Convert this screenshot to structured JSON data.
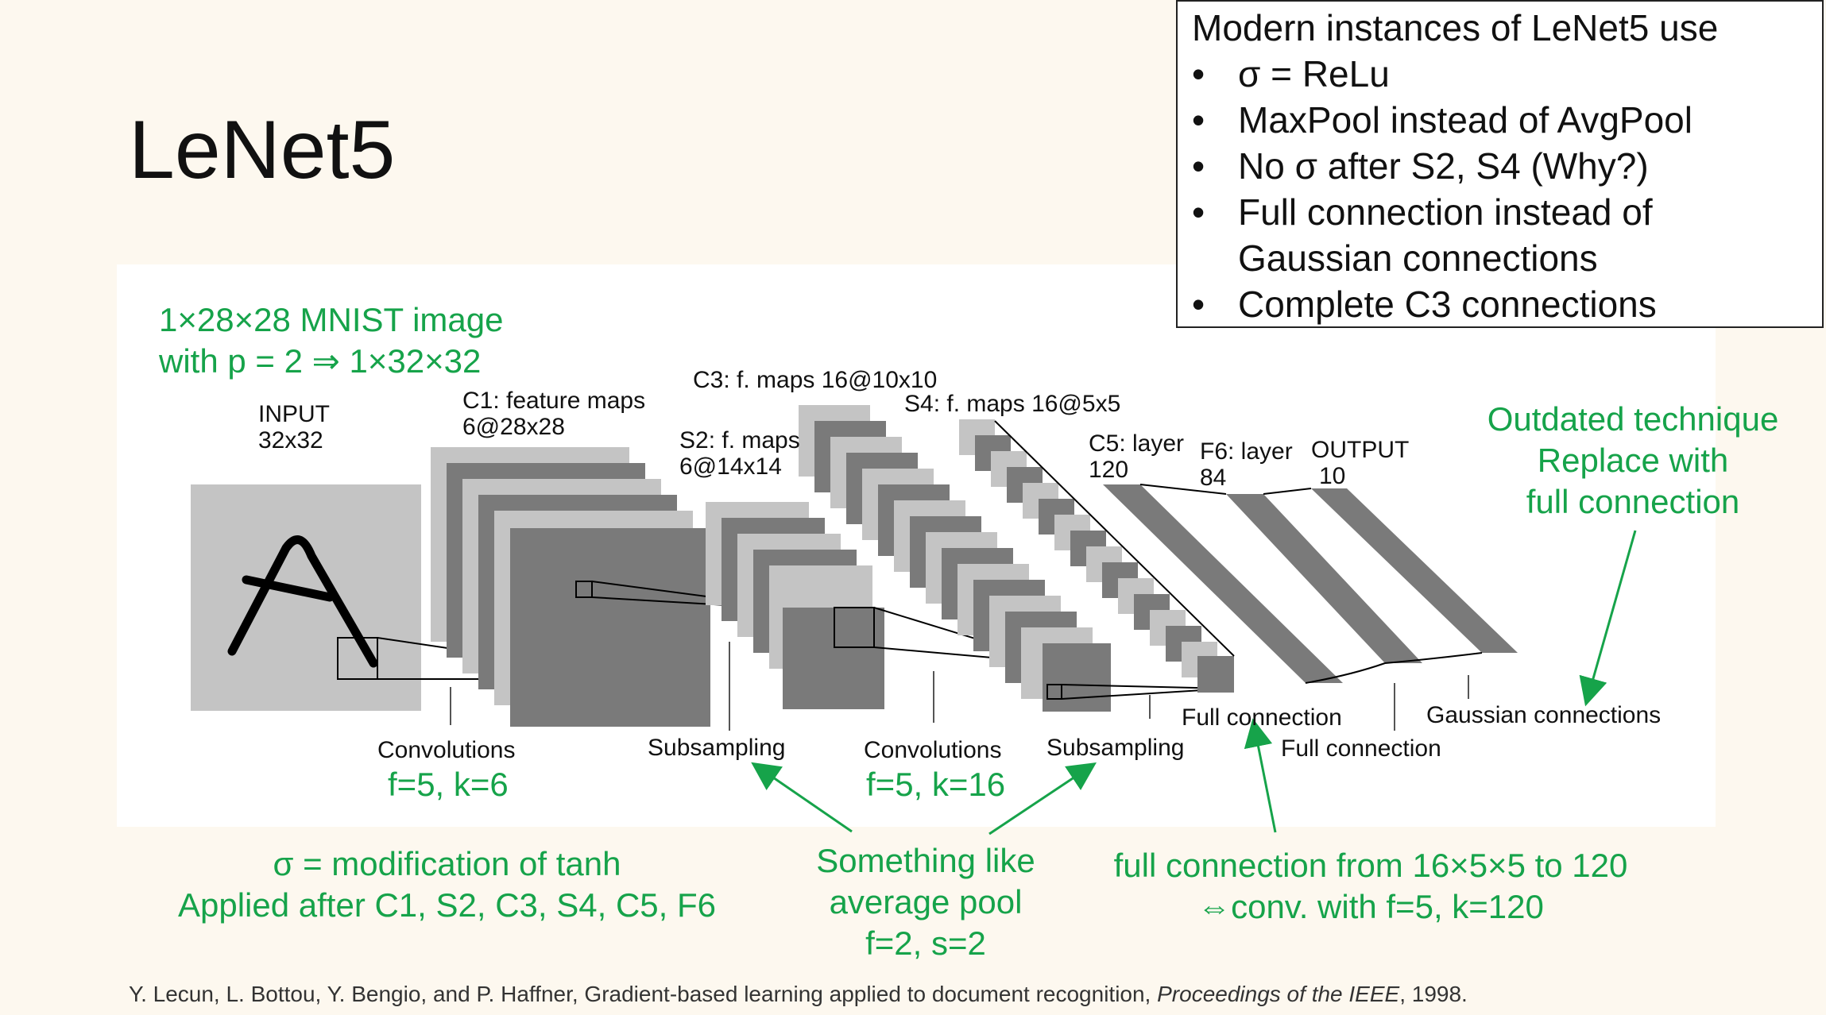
{
  "slide": {
    "title": "LeNet5",
    "citation_pre": "Y. Lecun, L. Bottou, Y. Bengio, and P. Haffner, Gradient-based learning applied to document recognition, ",
    "citation_venue": "Proceedings of the IEEE",
    "citation_post": ", 1998."
  },
  "notes_box": {
    "heading": "Modern instances of LeNet5 use",
    "bullets": [
      "σ = ReLu",
      "MaxPool instead of AvgPool",
      "No σ after S2, S4 (Why?)",
      "Full connection instead of",
      "Gaussian connections",
      "Complete C3 connections"
    ],
    "bullet_glyph": "•"
  },
  "diagram": {
    "input_label": [
      "INPUT",
      "32x32"
    ],
    "c1_label": [
      "C1: feature maps",
      "6@28x28"
    ],
    "s2_label": [
      "S2: f. maps",
      "6@14x14"
    ],
    "c3_label": "C3: f. maps 16@10x10",
    "s4_label": "S4: f. maps 16@5x5",
    "c5_label": [
      "C5: layer",
      "120"
    ],
    "f6_label": [
      "F6: layer",
      "84"
    ],
    "output_label": [
      "OUTPUT",
      "10"
    ],
    "op_labels": {
      "conv1": "Convolutions",
      "sub1": "Subsampling",
      "conv2": "Convolutions",
      "sub2": "Subsampling",
      "full1": "Full connection",
      "full2": "Full connection",
      "gauss": "Gaussian connections"
    }
  },
  "annotations": {
    "mnist": [
      "1×28×28 MNIST image",
      "with p = 2 ⇒ 1×32×32"
    ],
    "conv1_params": "f=5, k=6",
    "conv2_params": "f=5, k=16",
    "sigma_note": [
      "σ = modification of tanh",
      "Applied after C1, S2, C3, S4, C5,  F6"
    ],
    "avgpool_note": [
      "Something like",
      "average pool",
      "f=2, s=2"
    ],
    "fullconn_note": [
      "full connection from 16×5×5 to 120",
      "⇔conv. with f=5, k=120"
    ],
    "outdated_note": [
      "Outdated technique",
      "Replace with",
      "full connection"
    ]
  },
  "colors": {
    "annotation_green": "#16a34a",
    "dark_map": "#7a7a7a",
    "light_map": "#c4c4c4"
  }
}
